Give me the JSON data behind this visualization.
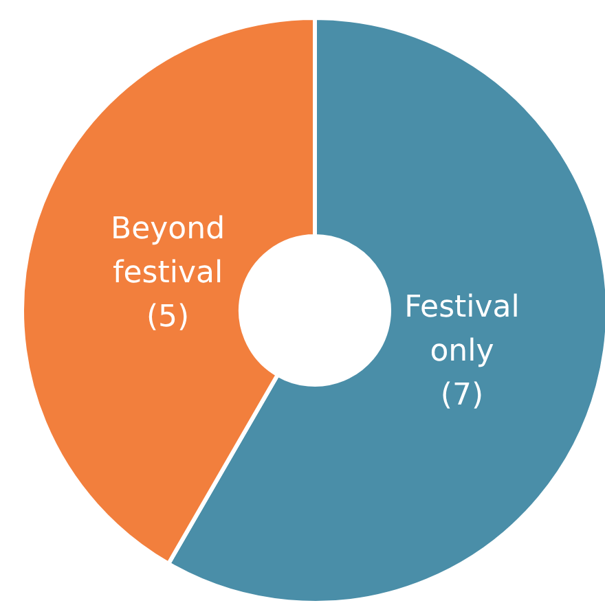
{
  "chart_data": {
    "type": "donut",
    "categories": [
      "Festival only",
      "Beyond festival"
    ],
    "values": [
      7,
      5
    ],
    "colors": [
      "#4a8ea8",
      "#f27f3d"
    ],
    "value_labels": [
      "(7)",
      "(5)"
    ],
    "legend": false
  }
}
